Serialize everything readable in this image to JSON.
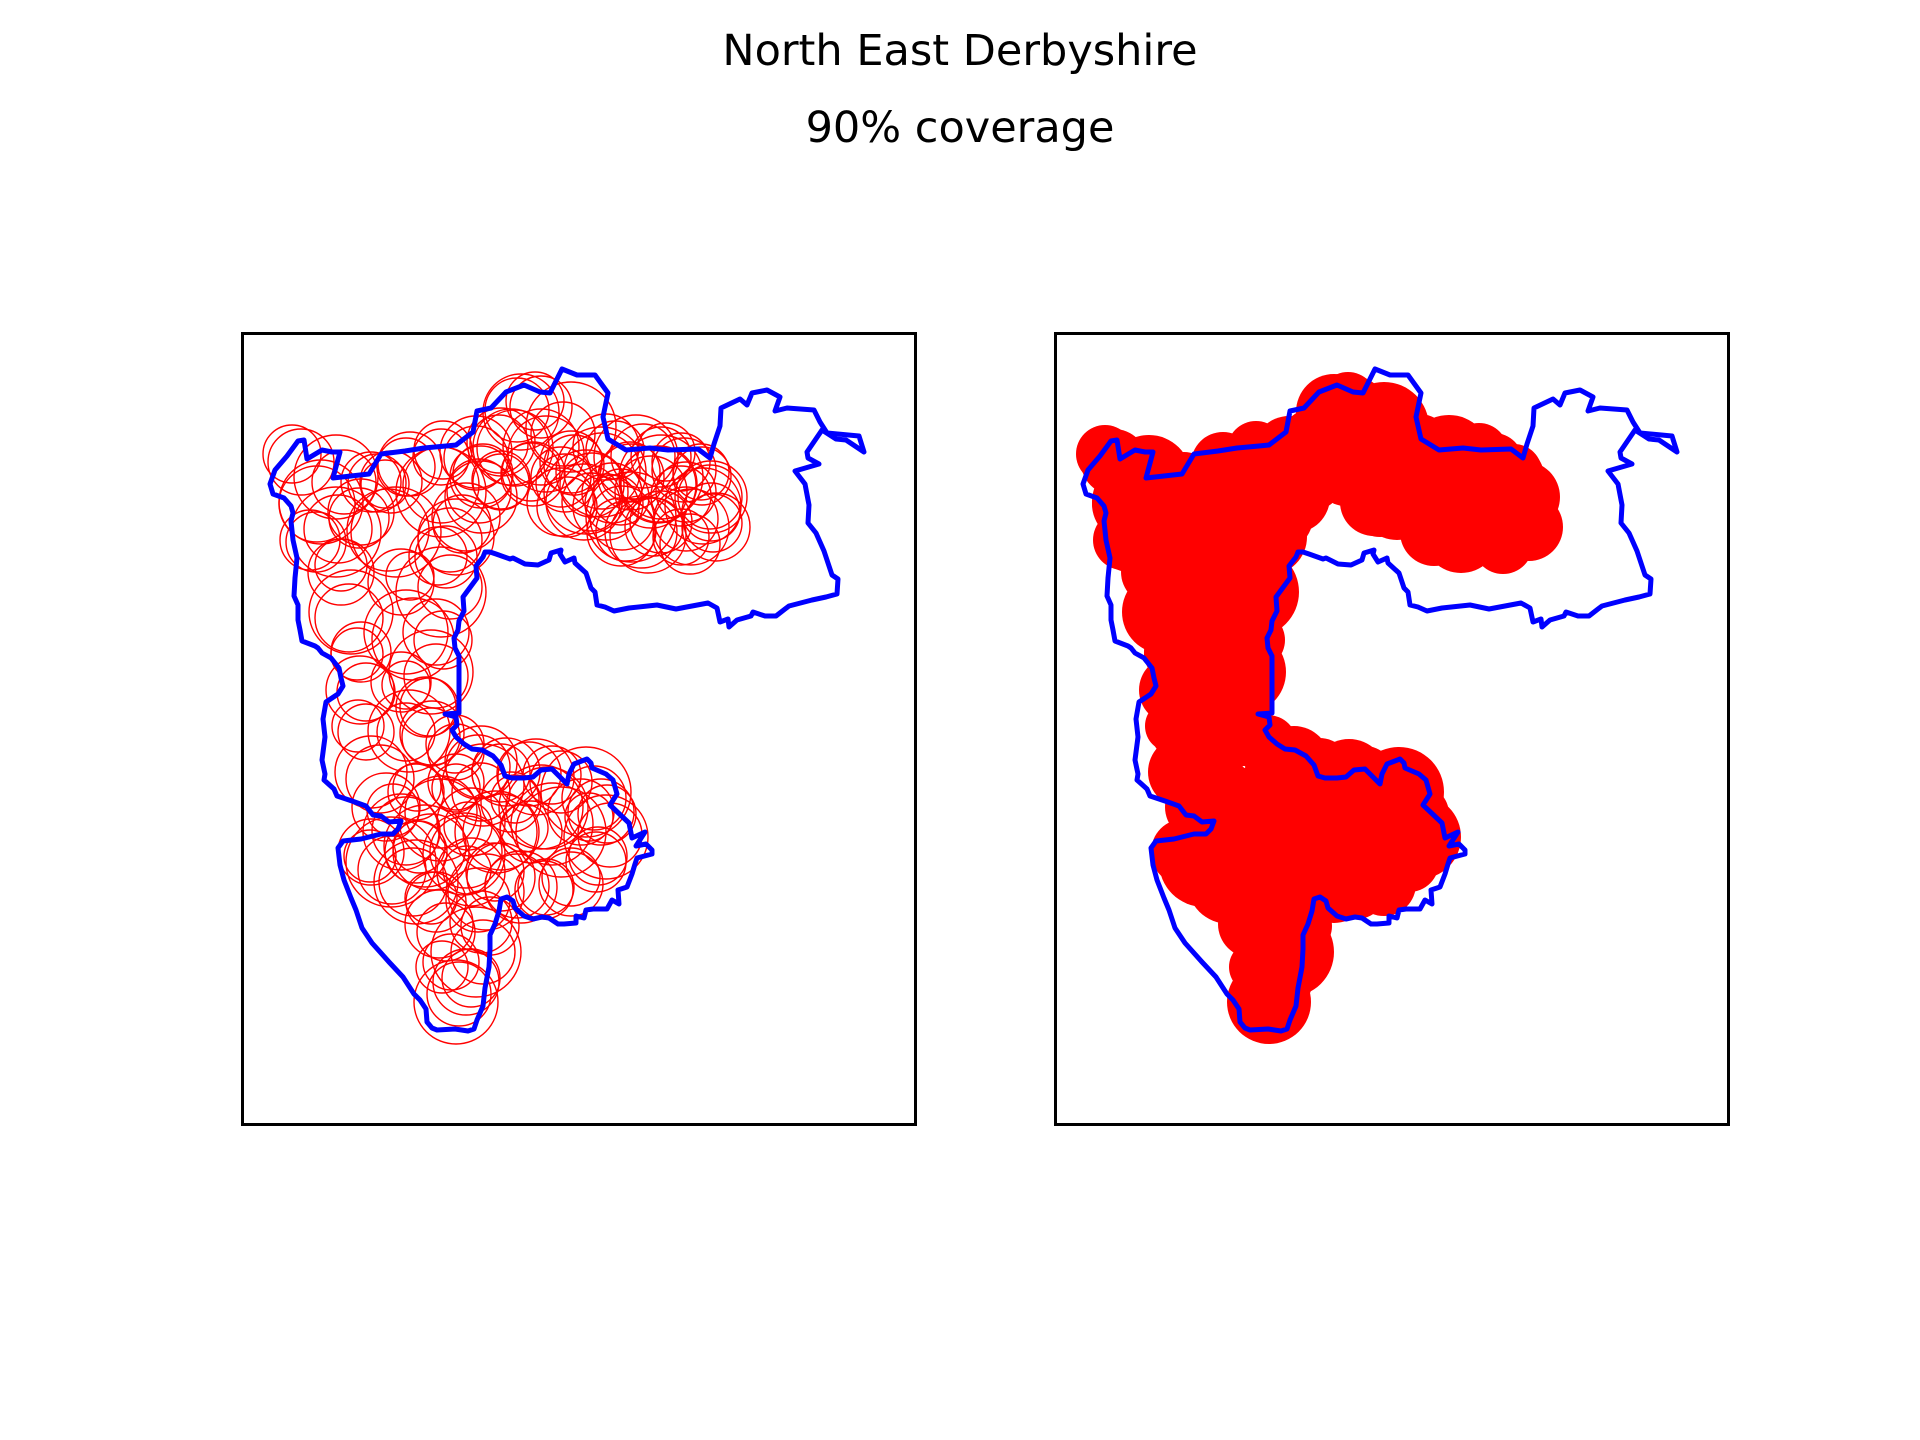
{
  "figure": {
    "title": "North East Derbyshire",
    "subtitle": "90% coverage"
  },
  "map": {
    "region": "North East Derbyshire",
    "coverage_percent": 90,
    "panels": [
      {
        "view": "individual coverage circles",
        "circle_style": "outline"
      },
      {
        "view": "merged coverage area",
        "circle_style": "filled"
      }
    ],
    "colors": {
      "boundary": "#0000ff",
      "coverage": "#ff0000",
      "frame": "#000000",
      "background": "#ffffff"
    }
  }
}
